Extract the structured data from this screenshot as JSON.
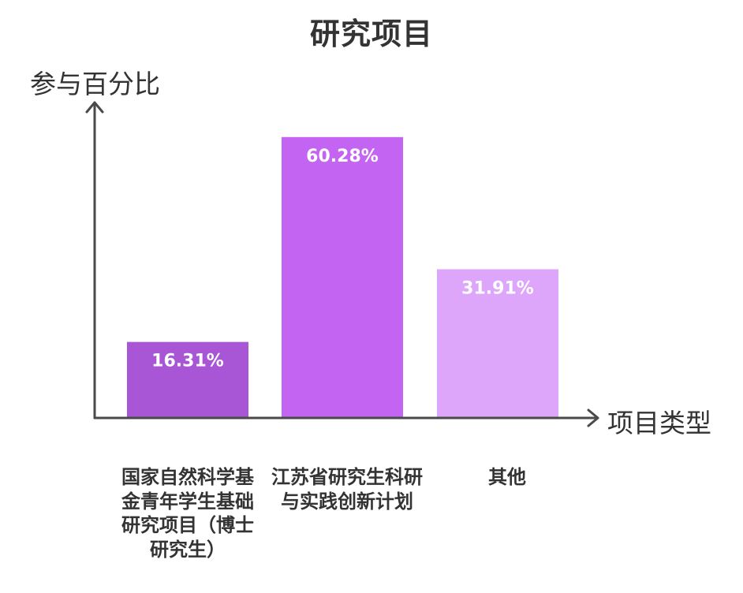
{
  "chart_data": {
    "type": "bar",
    "title": "研究项目",
    "xlabel": "项目类型",
    "ylabel": "参与百分比",
    "categories": [
      "国家自然科学基金青年学生基础研究项目（博士研究生）",
      "江苏省研究生科研与实践创新计划",
      "其他"
    ],
    "values": [
      16.31,
      60.28,
      31.91
    ],
    "data_labels": [
      "16.31%",
      "60.28%",
      "31.91%"
    ],
    "ylim": [
      0,
      66
    ],
    "grid": false,
    "colors": [
      "#a855d6",
      "#c464f2",
      "#dea6fa"
    ]
  }
}
